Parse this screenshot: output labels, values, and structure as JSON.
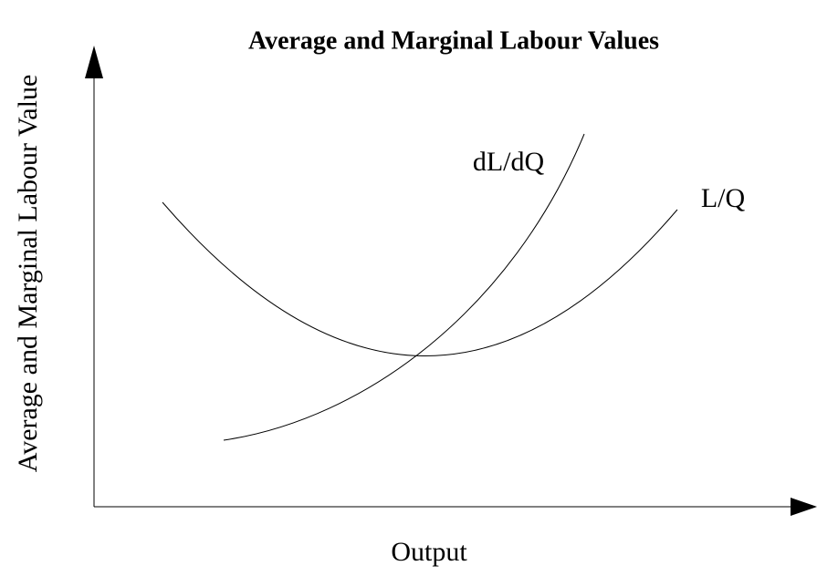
{
  "title": "Average and Marginal Labour Values",
  "y_axis_label": "Average and Marginal Labour Value",
  "x_axis_label": "Output",
  "curves": [
    {
      "label": "dL/dQ"
    },
    {
      "label": "L/Q"
    }
  ]
}
